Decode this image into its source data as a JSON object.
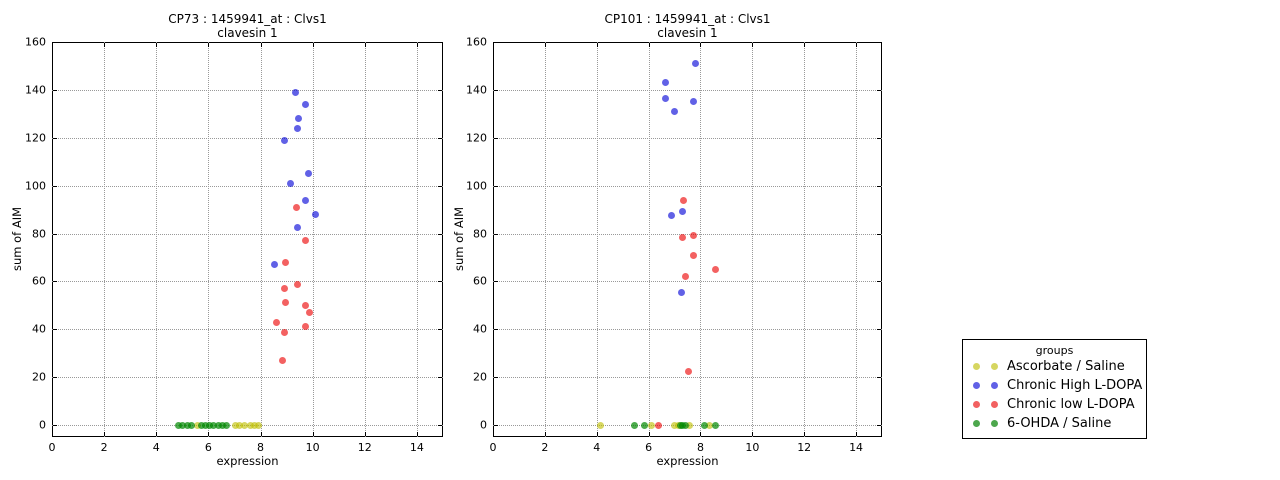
{
  "chart_data": [
    {
      "type": "scatter",
      "title_line1": "CP73 : 1459941_at : Clvs1",
      "title_line2": "clavesin 1",
      "xlabel": "expression",
      "ylabel": "sum of AIM",
      "xlim": [
        0,
        15
      ],
      "ylim": [
        -5,
        160
      ],
      "xticks": [
        0,
        2,
        4,
        6,
        8,
        10,
        12,
        14
      ],
      "yticks": [
        0,
        20,
        40,
        60,
        80,
        100,
        120,
        140,
        160
      ],
      "grid": true,
      "series": [
        {
          "name": "Ascorbate / Saline",
          "color": "rgba(190,190,0,0.62)",
          "points": [
            [
              5.57,
              0
            ],
            [
              7.03,
              0
            ],
            [
              7.2,
              0
            ],
            [
              7.37,
              0
            ],
            [
              7.6,
              0
            ],
            [
              7.77,
              0
            ],
            [
              7.93,
              0
            ]
          ]
        },
        {
          "name": "Chronic High L-DOPA",
          "color": "rgba(0,0,215,0.62)",
          "points": [
            [
              9.35,
              139
            ],
            [
              9.71,
              134
            ],
            [
              9.45,
              128
            ],
            [
              9.41,
              124
            ],
            [
              8.91,
              119
            ],
            [
              9.84,
              105
            ],
            [
              9.16,
              101
            ],
            [
              9.71,
              94
            ],
            [
              10.09,
              88
            ],
            [
              9.43,
              82.5
            ],
            [
              8.52,
              67
            ]
          ]
        },
        {
          "name": "Chronic low L-DOPA",
          "color": "rgba(235,0,0,0.62)",
          "points": [
            [
              9.39,
              91
            ],
            [
              9.71,
              77
            ],
            [
              8.97,
              68
            ],
            [
              9.41,
              58.5
            ],
            [
              8.91,
              57
            ],
            [
              8.97,
              51
            ],
            [
              9.71,
              50
            ],
            [
              9.87,
              47
            ],
            [
              8.62,
              43
            ],
            [
              9.71,
              41
            ],
            [
              8.91,
              38.5
            ],
            [
              8.84,
              27
            ]
          ]
        },
        {
          "name": "6-OHDA / Saline",
          "color": "rgba(0,135,0,0.70)",
          "points": [
            [
              4.86,
              0
            ],
            [
              5.02,
              0
            ],
            [
              5.21,
              0
            ],
            [
              5.37,
              0
            ],
            [
              5.75,
              0
            ],
            [
              5.9,
              0
            ],
            [
              6.06,
              0
            ],
            [
              6.21,
              0
            ],
            [
              6.37,
              0
            ],
            [
              6.55,
              0
            ],
            [
              6.71,
              0
            ]
          ]
        }
      ]
    },
    {
      "type": "scatter",
      "title_line1": "CP101 : 1459941_at : Clvs1",
      "title_line2": "clavesin 1",
      "xlabel": "expression",
      "ylabel": "sum of AIM",
      "xlim": [
        0,
        15
      ],
      "ylim": [
        -5,
        160
      ],
      "xticks": [
        0,
        2,
        4,
        6,
        8,
        10,
        12,
        14
      ],
      "yticks": [
        0,
        20,
        40,
        60,
        80,
        100,
        120,
        140,
        160
      ],
      "grid": true,
      "series": [
        {
          "name": "Ascorbate / Saline",
          "color": "rgba(190,190,0,0.62)",
          "points": [
            [
              4.14,
              0
            ],
            [
              6.11,
              0
            ],
            [
              6.98,
              0
            ],
            [
              7.14,
              0
            ],
            [
              7.59,
              0
            ],
            [
              8.36,
              0
            ]
          ]
        },
        {
          "name": "Chronic High L-DOPA",
          "color": "rgba(0,0,215,0.62)",
          "points": [
            [
              7.82,
              151
            ],
            [
              6.66,
              143
            ],
            [
              6.66,
              136.5
            ],
            [
              7.72,
              135
            ],
            [
              6.98,
              131
            ],
            [
              7.3,
              89
            ],
            [
              6.89,
              87.5
            ],
            [
              7.28,
              55.5
            ]
          ]
        },
        {
          "name": "Chronic low L-DOPA",
          "color": "rgba(235,0,0,0.62)",
          "points": [
            [
              7.33,
              94
            ],
            [
              7.74,
              79
            ],
            [
              7.3,
              78.5
            ],
            [
              7.75,
              71
            ],
            [
              8.59,
              65
            ],
            [
              7.42,
              62
            ],
            [
              7.54,
              22.5
            ],
            [
              6.4,
              0
            ]
          ]
        },
        {
          "name": "6-OHDA / Saline",
          "color": "rgba(0,135,0,0.70)",
          "points": [
            [
              5.46,
              0
            ],
            [
              5.85,
              0
            ],
            [
              7.22,
              0
            ],
            [
              7.3,
              0
            ],
            [
              7.43,
              0
            ],
            [
              8.17,
              0
            ],
            [
              8.59,
              0
            ]
          ]
        }
      ]
    }
  ],
  "legend": {
    "title": "groups",
    "entries": [
      {
        "label": "Ascorbate / Saline",
        "color": "#d6d661"
      },
      {
        "label": "Chronic High L-DOPA",
        "color": "#6161e6"
      },
      {
        "label": "Chronic low L-DOPA",
        "color": "#f26161"
      },
      {
        "label": "6-OHDA / Saline",
        "color": "#4da74d"
      }
    ]
  }
}
